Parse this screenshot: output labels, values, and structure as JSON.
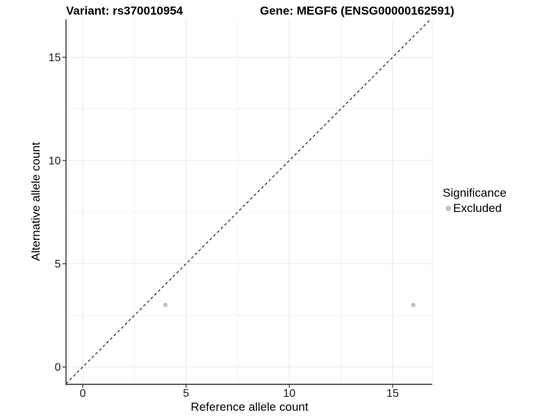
{
  "chart_data": {
    "type": "scatter",
    "title_left": "Variant: rs370010954",
    "title_right": "Gene: MEGF6 (ENSG00000162591)",
    "xlabel": "Reference allele count",
    "ylabel": "Alternative allele count",
    "xlim": [
      -0.81,
      16.92
    ],
    "ylim": [
      -0.84,
      16.83
    ],
    "x_major_ticks": [
      0,
      5,
      10,
      15
    ],
    "y_major_ticks": [
      0,
      5,
      10,
      15
    ],
    "x_minor_gridlines": [
      2.5,
      7.5,
      12.5
    ],
    "y_minor_gridlines": [
      2.5,
      7.5,
      12.5
    ],
    "grid": "on",
    "identity_line": {
      "slope": 1,
      "intercept": 0,
      "style": "dashed",
      "color": "#1a1a1a"
    },
    "series": [
      {
        "name": "Excluded",
        "marker": "circle",
        "color": "#c2c2c2",
        "points": [
          {
            "x": 4,
            "y": 3
          },
          {
            "x": 16,
            "y": 3
          }
        ]
      }
    ],
    "legend": {
      "title": "Significance",
      "position": "right",
      "items": [
        {
          "label": "Excluded",
          "color": "#c2c2c2",
          "marker": "circle"
        }
      ]
    },
    "colors": {
      "axis_line": "#2a2a2a",
      "tick_label": "#1a1a1a",
      "grid_major": "#e8e8e8",
      "grid_minor": "#f3f3f3",
      "panel_edge": "#ededed",
      "background": "#ffffff"
    }
  }
}
